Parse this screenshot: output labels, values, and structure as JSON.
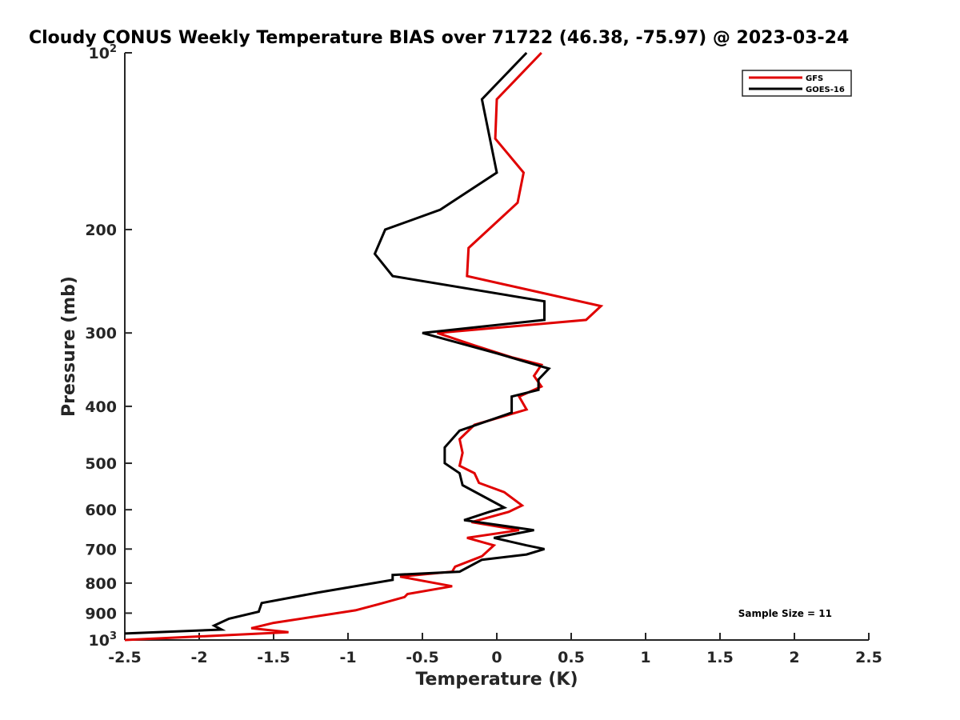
{
  "chart_data": {
    "type": "line",
    "title": "Cloudy CONUS Weekly Temperature BIAS over 71722 (46.38, -75.97) @ 2023-03-24",
    "xlabel": "Temperature (K)",
    "ylabel": "Pressure (mb)",
    "xlim": [
      -2.5,
      2.5
    ],
    "ylim": [
      100,
      1000
    ],
    "yscale": "log",
    "y_reversed": true,
    "grid": false,
    "x_ticks": [
      -2.5,
      -2,
      -1.5,
      -1,
      -0.5,
      0,
      0.5,
      1,
      1.5,
      2,
      2.5
    ],
    "x_tick_labels": [
      "-2.5",
      "-2",
      "-1.5",
      "-1",
      "-0.5",
      "0",
      "0.5",
      "1",
      "1.5",
      "2",
      "2.5"
    ],
    "y_ticks": [
      {
        "value": 100,
        "base": "10",
        "exp": "2"
      },
      {
        "value": 200,
        "label": "200"
      },
      {
        "value": 300,
        "label": "300"
      },
      {
        "value": 400,
        "label": "400"
      },
      {
        "value": 500,
        "label": "500"
      },
      {
        "value": 600,
        "label": "600"
      },
      {
        "value": 700,
        "label": "700"
      },
      {
        "value": 800,
        "label": "800"
      },
      {
        "value": 900,
        "label": "900"
      },
      {
        "value": 1000,
        "base": "10",
        "exp": "3"
      }
    ],
    "legend_position": "top-right",
    "annotation": "Sample Size = 11",
    "series": [
      {
        "name": "GFS",
        "color": "#e00000",
        "points": [
          [
            0.3,
            100
          ],
          [
            0.0,
            120
          ],
          [
            -0.01,
            140
          ],
          [
            0.18,
            160
          ],
          [
            0.14,
            180
          ],
          [
            -0.19,
            215
          ],
          [
            -0.2,
            240
          ],
          [
            0.7,
            270
          ],
          [
            0.6,
            285
          ],
          [
            -0.4,
            300
          ],
          [
            -0.15,
            315
          ],
          [
            0.1,
            330
          ],
          [
            0.3,
            340
          ],
          [
            0.25,
            355
          ],
          [
            0.3,
            370
          ],
          [
            0.15,
            385
          ],
          [
            0.2,
            405
          ],
          [
            -0.15,
            430
          ],
          [
            -0.25,
            455
          ],
          [
            -0.23,
            480
          ],
          [
            -0.25,
            505
          ],
          [
            -0.15,
            520
          ],
          [
            -0.12,
            540
          ],
          [
            0.05,
            560
          ],
          [
            0.17,
            590
          ],
          [
            0.08,
            605
          ],
          [
            -0.17,
            630
          ],
          [
            0.15,
            650
          ],
          [
            -0.2,
            670
          ],
          [
            -0.02,
            690
          ],
          [
            -0.1,
            720
          ],
          [
            -0.28,
            750
          ],
          [
            -0.3,
            765
          ],
          [
            -0.65,
            780
          ],
          [
            -0.3,
            810
          ],
          [
            -0.6,
            835
          ],
          [
            -0.62,
            845
          ],
          [
            -0.8,
            870
          ],
          [
            -0.95,
            890
          ],
          [
            -1.5,
            935
          ],
          [
            -1.65,
            955
          ],
          [
            -1.4,
            970
          ],
          [
            -2.5,
            1000
          ]
        ]
      },
      {
        "name": "GOES-16",
        "color": "#000000",
        "points": [
          [
            0.2,
            100
          ],
          [
            -0.1,
            120
          ],
          [
            0.0,
            160
          ],
          [
            -0.38,
            185
          ],
          [
            -0.75,
            200
          ],
          [
            -0.82,
            220
          ],
          [
            -0.7,
            240
          ],
          [
            0.32,
            265
          ],
          [
            0.32,
            285
          ],
          [
            -0.5,
            300
          ],
          [
            0.0,
            325
          ],
          [
            0.35,
            345
          ],
          [
            0.28,
            360
          ],
          [
            0.28,
            375
          ],
          [
            0.1,
            385
          ],
          [
            0.1,
            410
          ],
          [
            -0.25,
            440
          ],
          [
            -0.35,
            470
          ],
          [
            -0.35,
            500
          ],
          [
            -0.25,
            520
          ],
          [
            -0.23,
            545
          ],
          [
            0.05,
            595
          ],
          [
            -0.05,
            605
          ],
          [
            -0.22,
            625
          ],
          [
            0.25,
            650
          ],
          [
            -0.02,
            670
          ],
          [
            0.2,
            690
          ],
          [
            0.32,
            700
          ],
          [
            0.2,
            715
          ],
          [
            -0.1,
            730
          ],
          [
            -0.25,
            765
          ],
          [
            -0.7,
            775
          ],
          [
            -0.7,
            790
          ],
          [
            -1.2,
            830
          ],
          [
            -1.58,
            865
          ],
          [
            -1.6,
            895
          ],
          [
            -1.8,
            920
          ],
          [
            -1.9,
            945
          ],
          [
            -1.85,
            960
          ],
          [
            -2.5,
            975
          ]
        ]
      }
    ]
  }
}
